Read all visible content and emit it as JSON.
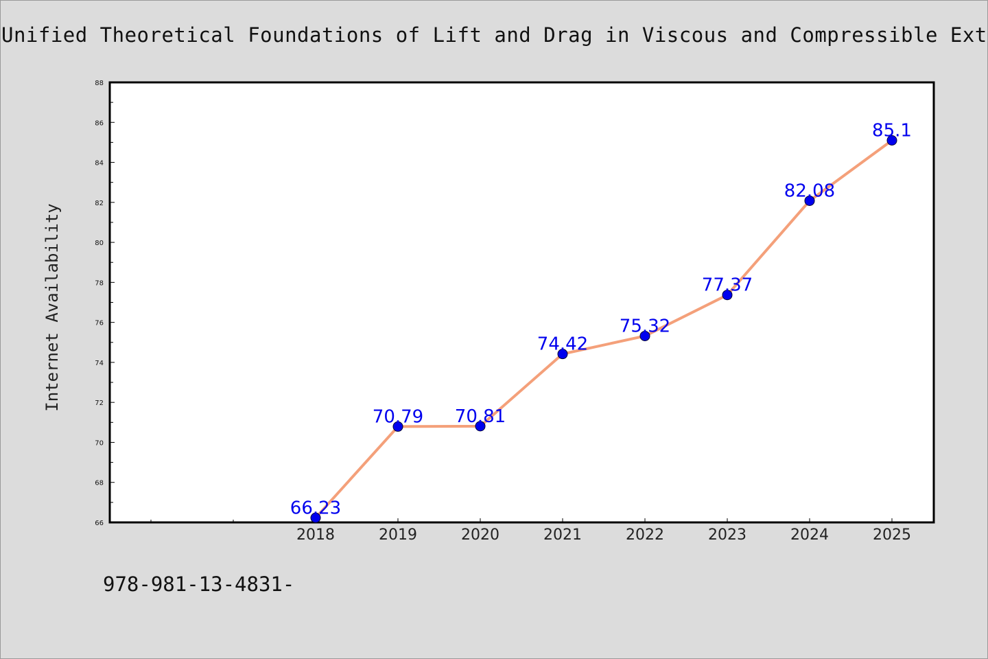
{
  "title": "Unified Theoretical Foundations of Lift and Drag in Viscous and Compressible External Flows",
  "footer_text": "978-981-13-4831-",
  "chart_data": {
    "type": "line",
    "title": "Unified Theoretical Foundations of Lift and Drag in Viscous and Compressible External Flows",
    "xlabel": "",
    "ylabel": "Internet Availability",
    "categories": [
      "2018",
      "2019",
      "2020",
      "2021",
      "2022",
      "2023",
      "2024",
      "2025"
    ],
    "values": [
      66.23,
      70.79,
      70.81,
      74.42,
      75.32,
      77.37,
      82.08,
      85.1
    ],
    "data_labels": [
      "66.23",
      "70.79",
      "70.81",
      "74.42",
      "75.32",
      "77.37",
      "82.08",
      "85.1"
    ],
    "ylim": [
      66,
      88
    ],
    "yticks": [
      "66",
      "68",
      "70",
      "72",
      "74",
      "76",
      "78",
      "80",
      "82",
      "84",
      "86",
      "88"
    ],
    "grid": false,
    "legend": "none",
    "colors": {
      "line": "#f4a07a",
      "marker": "#0000ee",
      "label": "#0000ee",
      "plot_background": "#ffffff",
      "page_background": "#dcdcdc"
    }
  }
}
